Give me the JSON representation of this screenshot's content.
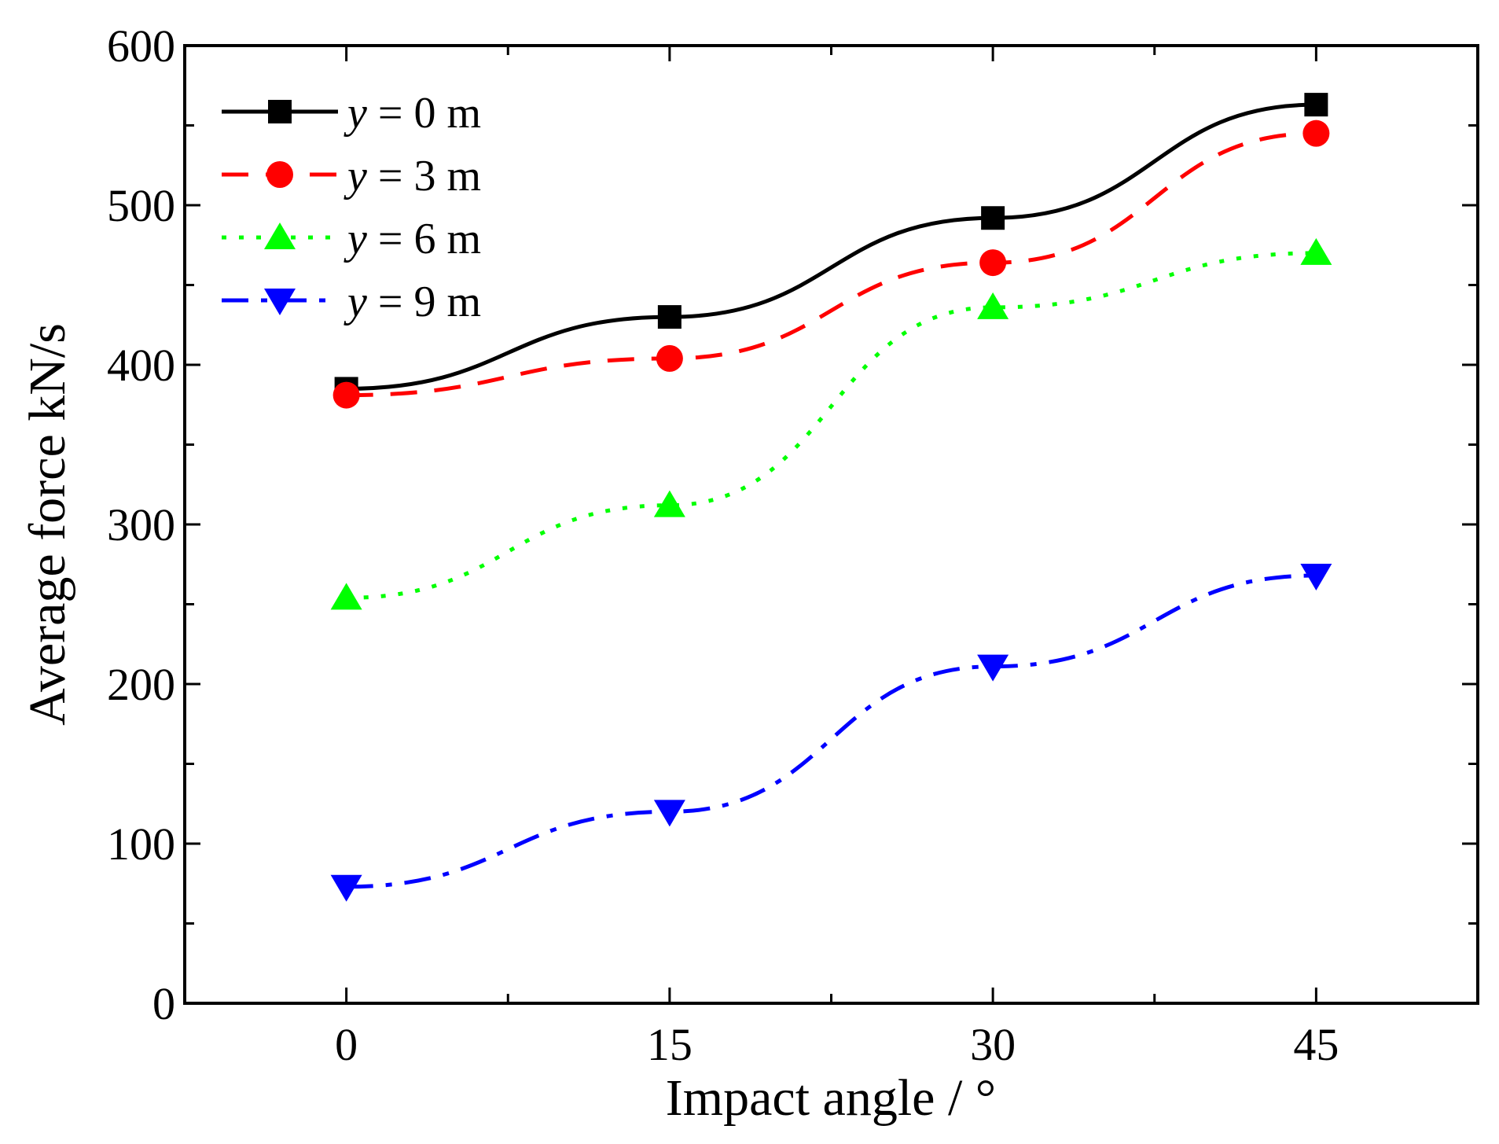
{
  "chart_data": {
    "type": "line",
    "title": "",
    "xlabel": "Impact angle / °",
    "ylabel": "Average force kN/s",
    "x": [
      0,
      15,
      30,
      45
    ],
    "xlim": [
      -7.5,
      52.5
    ],
    "ylim": [
      0,
      600
    ],
    "xticks": [
      "0",
      "15",
      "30",
      "45"
    ],
    "yticks": [
      "0",
      "100",
      "200",
      "300",
      "400",
      "500",
      "600"
    ],
    "grid": false,
    "legend_position": "top-left",
    "series": [
      {
        "name": "y = 0 m",
        "var": "y",
        "rest": " = 0 m",
        "color": "#000000",
        "dash": "solid",
        "marker": "square",
        "values": [
          385,
          430,
          492,
          563
        ]
      },
      {
        "name": "y = 3 m",
        "var": "y",
        "rest": " = 3 m",
        "color": "#ff0000",
        "dash": "dash",
        "marker": "circle",
        "values": [
          381,
          404,
          464,
          545
        ]
      },
      {
        "name": "y = 6 m",
        "var": "y",
        "rest": " = 6 m",
        "color": "#00ff00",
        "dash": "dot",
        "marker": "triangle-up",
        "values": [
          254,
          312,
          436,
          470
        ]
      },
      {
        "name": "y = 9 m",
        "var": "y",
        "rest": " = 9 m",
        "color": "#0000ff",
        "dash": "dashdot",
        "marker": "triangle-down",
        "values": [
          73,
          120,
          211,
          268
        ]
      }
    ]
  }
}
